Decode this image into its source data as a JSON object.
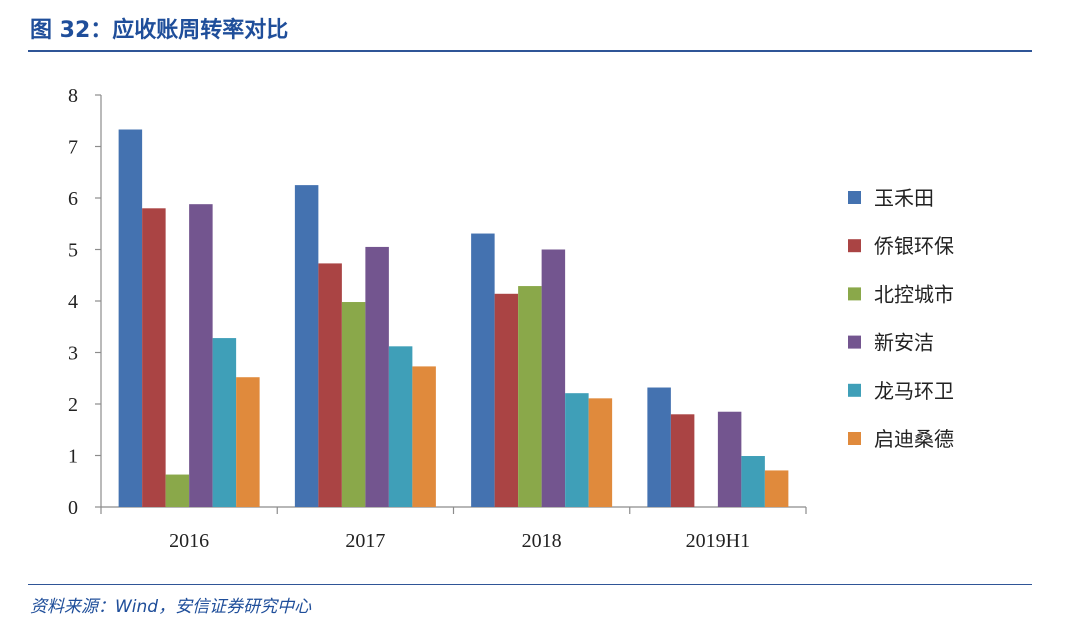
{
  "header": {
    "title": "图 32：应收账周转率对比"
  },
  "footer": {
    "source": "资料来源：Wind，安信证券研究中心"
  },
  "chart_data": {
    "type": "bar",
    "categories": [
      "2016",
      "2017",
      "2018",
      "2019H1"
    ],
    "ylim": [
      0,
      8
    ],
    "yticks": [
      "0",
      "1",
      "2",
      "3",
      "4",
      "5",
      "6",
      "7",
      "8"
    ],
    "grid": false,
    "legend_position": "right",
    "series": [
      {
        "name": "玉禾田",
        "color": "#4472b0",
        "values": [
          7.33,
          6.25,
          5.31,
          2.32
        ]
      },
      {
        "name": "侨银环保",
        "color": "#aa4444",
        "values": [
          5.8,
          4.73,
          4.14,
          1.8
        ]
      },
      {
        "name": "北控城市",
        "color": "#8aa84a",
        "values": [
          0.63,
          3.98,
          4.29,
          null
        ]
      },
      {
        "name": "新安洁",
        "color": "#73558f",
        "values": [
          5.88,
          5.05,
          5.0,
          1.85
        ]
      },
      {
        "name": "龙马环卫",
        "color": "#3f9fb8",
        "values": [
          3.28,
          3.12,
          2.21,
          0.99
        ]
      },
      {
        "name": "启迪桑德",
        "color": "#e08a3c",
        "values": [
          2.52,
          2.73,
          2.11,
          0.71
        ]
      }
    ]
  }
}
